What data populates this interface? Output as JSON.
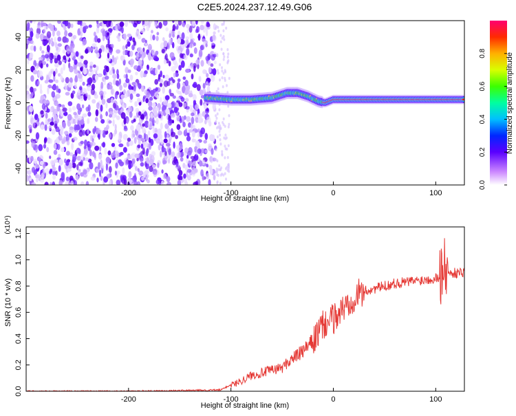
{
  "title": "C2E5.2024.237.12.49.G06",
  "chart_data": [
    {
      "type": "heatmap",
      "xlabel": "Height of straight line (km)",
      "ylabel": "Frequency (Hz)",
      "xlim": [
        -300,
        128
      ],
      "ylim": [
        -50,
        50
      ],
      "xticks": [
        -200,
        -100,
        0,
        100
      ],
      "yticks": [
        -40,
        -20,
        0,
        20,
        40
      ],
      "grid": false,
      "colorbar": {
        "label": "Normalized spectral amplitude",
        "ticks": [
          "0.0",
          "0.2",
          "0.4",
          "0.6",
          "0.8"
        ],
        "range": [
          0,
          1
        ]
      },
      "noise_region_x": [
        -300,
        -115
      ],
      "signal_track": [
        {
          "x": -125,
          "y": 3
        },
        {
          "x": -100,
          "y": 2
        },
        {
          "x": -80,
          "y": 2
        },
        {
          "x": -60,
          "y": 3
        },
        {
          "x": -45,
          "y": 6
        },
        {
          "x": -35,
          "y": 6
        },
        {
          "x": -25,
          "y": 4
        },
        {
          "x": -15,
          "y": 1
        },
        {
          "x": -8,
          "y": 0
        },
        {
          "x": 0,
          "y": 2
        },
        {
          "x": 20,
          "y": 2
        },
        {
          "x": 60,
          "y": 2
        },
        {
          "x": 100,
          "y": 2
        },
        {
          "x": 128,
          "y": 2
        }
      ]
    },
    {
      "type": "line",
      "xlabel": "Height of straight line (km)",
      "ylabel": "SNR (10 * v/v)",
      "yscale_label": "(x10⁴)",
      "xlim": [
        -300,
        128
      ],
      "ylim": [
        0,
        1.25
      ],
      "xticks": [
        -200,
        -100,
        0,
        100
      ],
      "yticks": [
        "0.0",
        "0.2",
        "0.4",
        "0.6",
        "0.8",
        "1.0",
        "1.2"
      ],
      "grid": false,
      "series": [
        {
          "color": "#e53935",
          "x": [
            -300,
            -250,
            -200,
            -150,
            -110,
            -100,
            -95,
            -90,
            -80,
            -70,
            -60,
            -50,
            -40,
            -30,
            -20,
            -10,
            0,
            10,
            20,
            30,
            40,
            50,
            60,
            70,
            80,
            90,
            100,
            105,
            110,
            115,
            120,
            128
          ],
          "y": [
            0.0,
            0.0,
            0.0,
            0.005,
            0.01,
            0.05,
            0.06,
            0.08,
            0.12,
            0.14,
            0.16,
            0.18,
            0.25,
            0.3,
            0.38,
            0.5,
            0.55,
            0.63,
            0.72,
            0.76,
            0.78,
            0.8,
            0.82,
            0.83,
            0.84,
            0.85,
            0.86,
            0.88,
            0.9,
            0.9,
            0.9,
            0.91
          ]
        }
      ]
    }
  ]
}
